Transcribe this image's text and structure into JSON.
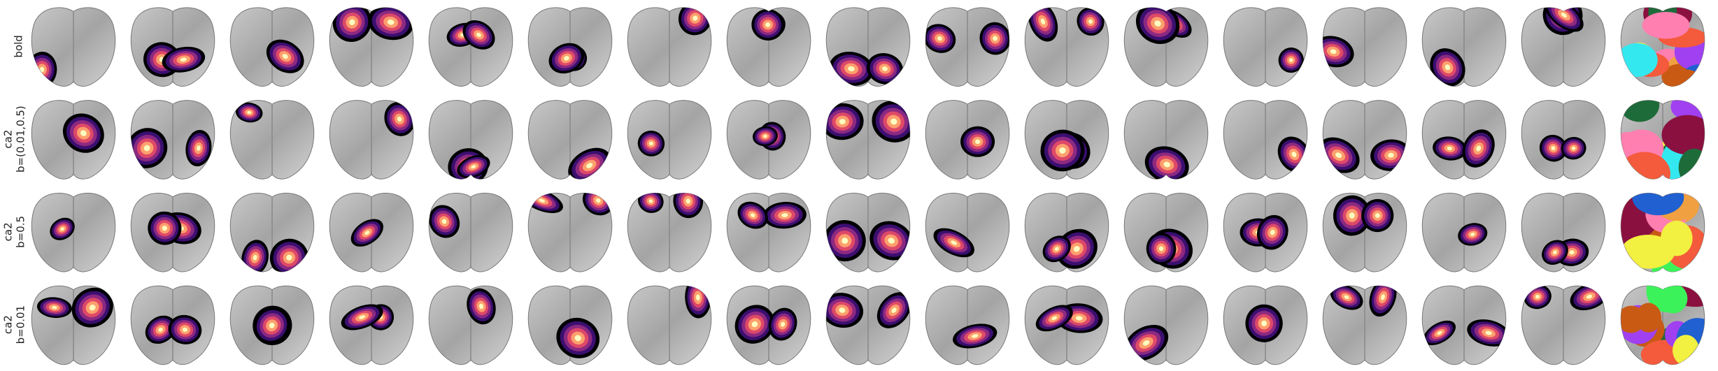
{
  "rows": [
    {
      "label": [
        "bold"
      ]
    },
    {
      "label": [
        "ca2",
        "b=(0.01,0.5)"
      ]
    },
    {
      "label": [
        "ca2",
        "b=0.5"
      ]
    },
    {
      "label": [
        "ca2",
        "b=0.01"
      ]
    }
  ]
}
